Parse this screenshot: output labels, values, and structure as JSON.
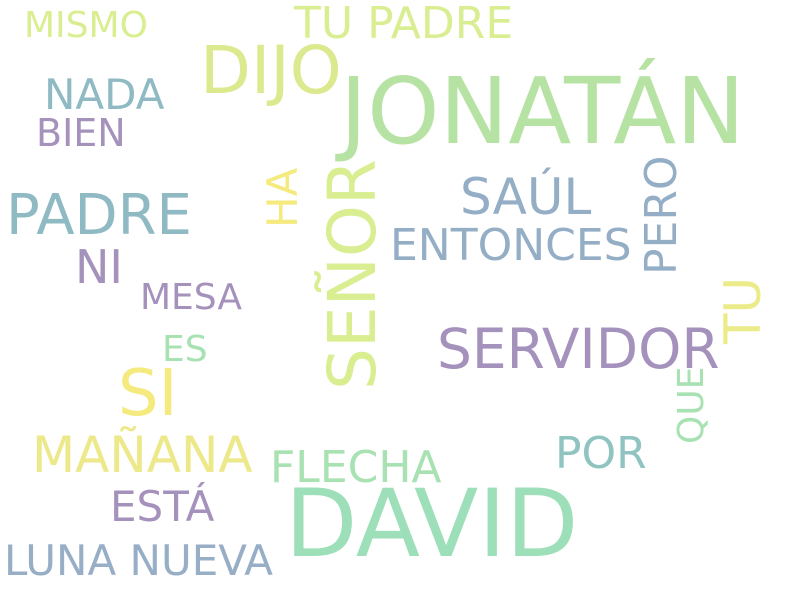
{
  "words": [
    {
      "text": "JONATÁN",
      "color": "#b6e3a4"
    },
    {
      "text": "DAVID",
      "color": "#9ddfb8"
    },
    {
      "text": "DIJO",
      "color": "#dde98f"
    },
    {
      "text": "SEÑOR",
      "color": "#d8ee90"
    },
    {
      "text": "SI",
      "color": "#f5ea7e"
    },
    {
      "text": "PADRE",
      "color": "#8fbac3"
    },
    {
      "text": "SERVIDOR",
      "color": "#a592bc"
    },
    {
      "text": "MAÑANA",
      "color": "#ede98a"
    },
    {
      "text": "LUNA NUEVA",
      "color": "#97aec6"
    },
    {
      "text": "TU PADRE",
      "color": "#d8ee90"
    },
    {
      "text": "SAÚL",
      "color": "#94aec6"
    },
    {
      "text": "ENTONCES",
      "color": "#94aec6"
    },
    {
      "text": "FLECHA",
      "color": "#a8e2b2"
    },
    {
      "text": "ESTÁ",
      "color": "#a592bc"
    },
    {
      "text": "NADA",
      "color": "#8fbac3"
    },
    {
      "text": "NI",
      "color": "#a592bc"
    },
    {
      "text": "MISMO",
      "color": "#d8ee90"
    },
    {
      "text": "BIEN",
      "color": "#a592bc"
    },
    {
      "text": "POR",
      "color": "#8fc4c0"
    },
    {
      "text": "PERO",
      "color": "#94aec6"
    },
    {
      "text": "HA",
      "color": "#f5ea7e"
    },
    {
      "text": "TU",
      "color": "#eceb8a"
    },
    {
      "text": "MESA",
      "color": "#a592bc"
    },
    {
      "text": "ES",
      "color": "#a8e2b2"
    },
    {
      "text": "QUE",
      "color": "#a8e2b2"
    }
  ]
}
